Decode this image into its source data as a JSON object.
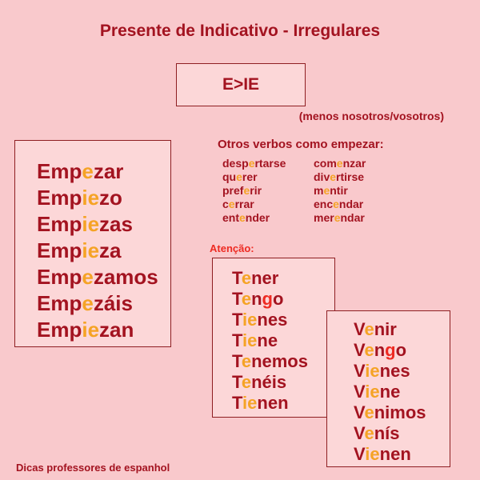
{
  "page": {
    "title": "Presente de Indicativo - Irregulares",
    "rule_label": "E>IE",
    "exception_note": "(menos nosotros/vosotros)",
    "footer": "Dicas professores de espanhol"
  },
  "colors": {
    "background": "#f9c9cc",
    "box_fill": "#fcd7d8",
    "box_border": "#8e1e22",
    "dark_red_text": "#a31320",
    "orange_highlight": "#f5a325",
    "bright_red_highlight": "#ee2a22"
  },
  "empezar_box": {
    "lines": [
      [
        [
          "Emp",
          "d"
        ],
        [
          "e",
          "o"
        ],
        [
          "zar",
          "d"
        ]
      ],
      [
        [
          "Emp",
          "d"
        ],
        [
          "ie",
          "o"
        ],
        [
          "zo",
          "d"
        ]
      ],
      [
        [
          "Emp",
          "d"
        ],
        [
          "ie",
          "o"
        ],
        [
          "zas",
          "d"
        ]
      ],
      [
        [
          "Emp",
          "d"
        ],
        [
          "ie",
          "o"
        ],
        [
          "za",
          "d"
        ]
      ],
      [
        [
          "Emp",
          "d"
        ],
        [
          "e",
          "o"
        ],
        [
          "zamos",
          "d"
        ]
      ],
      [
        [
          "Emp",
          "d"
        ],
        [
          "e",
          "o"
        ],
        [
          "záis",
          "d"
        ]
      ],
      [
        [
          "Emp",
          "d"
        ],
        [
          "ie",
          "o"
        ],
        [
          "zan",
          "d"
        ]
      ]
    ]
  },
  "other_verbs": {
    "heading": "Otros verbos como empezar:",
    "col1": [
      [
        [
          "desp",
          "d"
        ],
        [
          "e",
          "o"
        ],
        [
          "rtarse",
          "d"
        ]
      ],
      [
        [
          "qu",
          "d"
        ],
        [
          "e",
          "o"
        ],
        [
          "rer",
          "d"
        ]
      ],
      [
        [
          "pref",
          "d"
        ],
        [
          "e",
          "o"
        ],
        [
          "rir",
          "d"
        ]
      ],
      [
        [
          "c",
          "d"
        ],
        [
          "e",
          "o"
        ],
        [
          "rrar",
          "d"
        ]
      ],
      [
        [
          "ent",
          "d"
        ],
        [
          "e",
          "o"
        ],
        [
          "nder",
          "d"
        ]
      ]
    ],
    "col2": [
      [
        [
          "com",
          "d"
        ],
        [
          "e",
          "o"
        ],
        [
          "nzar",
          "d"
        ]
      ],
      [
        [
          "div",
          "d"
        ],
        [
          "e",
          "o"
        ],
        [
          "rtirse",
          "d"
        ]
      ],
      [
        [
          "m",
          "d"
        ],
        [
          "e",
          "o"
        ],
        [
          "ntir",
          "d"
        ]
      ],
      [
        [
          "enc",
          "d"
        ],
        [
          "e",
          "o"
        ],
        [
          "ndar",
          "d"
        ]
      ],
      [
        [
          "mer",
          "d"
        ],
        [
          "e",
          "o"
        ],
        [
          "ndar",
          "d"
        ]
      ]
    ]
  },
  "attention": {
    "label": "Atenção:"
  },
  "tener_box": {
    "lines": [
      [
        [
          "T",
          "d"
        ],
        [
          "e",
          "o"
        ],
        [
          "ner",
          "d"
        ]
      ],
      [
        [
          "T",
          "d"
        ],
        [
          "e",
          "o"
        ],
        [
          "n",
          "d"
        ],
        [
          "g",
          "r"
        ],
        [
          "o",
          "d"
        ]
      ],
      [
        [
          "T",
          "d"
        ],
        [
          "ie",
          "o"
        ],
        [
          "nes",
          "d"
        ]
      ],
      [
        [
          "T",
          "d"
        ],
        [
          "ie",
          "o"
        ],
        [
          "ne",
          "d"
        ]
      ],
      [
        [
          "T",
          "d"
        ],
        [
          "e",
          "o"
        ],
        [
          "nemos",
          "d"
        ]
      ],
      [
        [
          "T",
          "d"
        ],
        [
          "e",
          "o"
        ],
        [
          "néis",
          "d"
        ]
      ],
      [
        [
          "T",
          "d"
        ],
        [
          "ie",
          "o"
        ],
        [
          "nen",
          "d"
        ]
      ]
    ]
  },
  "venir_box": {
    "lines": [
      [
        [
          "V",
          "d"
        ],
        [
          "e",
          "o"
        ],
        [
          "nir",
          "d"
        ]
      ],
      [
        [
          "V",
          "d"
        ],
        [
          "e",
          "o"
        ],
        [
          "n",
          "d"
        ],
        [
          "g",
          "r"
        ],
        [
          "o",
          "d"
        ]
      ],
      [
        [
          "V",
          "d"
        ],
        [
          "ie",
          "o"
        ],
        [
          "nes",
          "d"
        ]
      ],
      [
        [
          "V",
          "d"
        ],
        [
          "ie",
          "o"
        ],
        [
          "ne",
          "d"
        ]
      ],
      [
        [
          "V",
          "d"
        ],
        [
          "e",
          "o"
        ],
        [
          "nimos",
          "d"
        ]
      ],
      [
        [
          "V",
          "d"
        ],
        [
          "e",
          "o"
        ],
        [
          "nís",
          "d"
        ]
      ],
      [
        [
          "V",
          "d"
        ],
        [
          "ie",
          "o"
        ],
        [
          "nen",
          "d"
        ]
      ]
    ]
  }
}
